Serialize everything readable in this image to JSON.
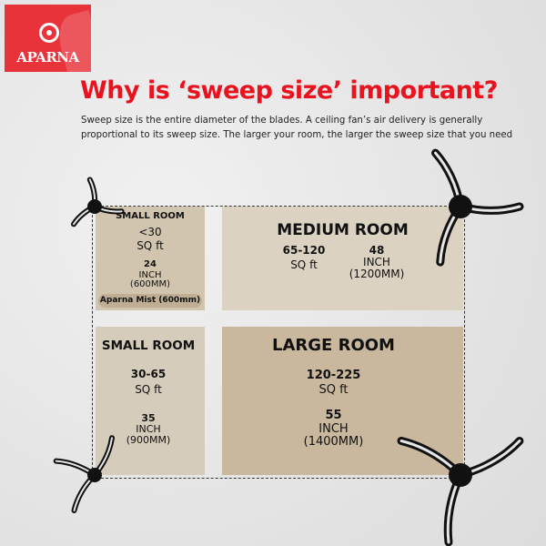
{
  "logo": {
    "brand": "APARNA"
  },
  "header": {
    "title": "Why is ‘sweep size’ important?",
    "description": "Sweep size is the entire diameter of the blades. A ceiling fan’s air delivery is generally proportional to its sweep size. The larger your room, the larger the sweep size that you need"
  },
  "rooms": [
    {
      "title": "SMALL ROOM",
      "area": "<30",
      "area_unit": "SQ ft",
      "size": "24",
      "size_unit": "INCH",
      "size_mm": "(600MM)",
      "product": "Aparna Mist (600mm)"
    },
    {
      "title": "MEDIUM ROOM",
      "area": "65-120",
      "area_unit": "SQ ft",
      "size": "48",
      "size_unit": "INCH",
      "size_mm": "(1200MM)"
    },
    {
      "title": "SMALL ROOM",
      "area": "30-65",
      "area_unit": "SQ ft",
      "size": "35",
      "size_unit": "INCH",
      "size_mm": "(900MM)"
    },
    {
      "title": "LARGE ROOM",
      "area": "120-225",
      "area_unit": "SQ ft",
      "size": "55",
      "size_unit": "INCH",
      "size_mm": "(1400MM)"
    }
  ],
  "colors": {
    "brand_red": "#e8333b",
    "title_red": "#e8131f"
  }
}
